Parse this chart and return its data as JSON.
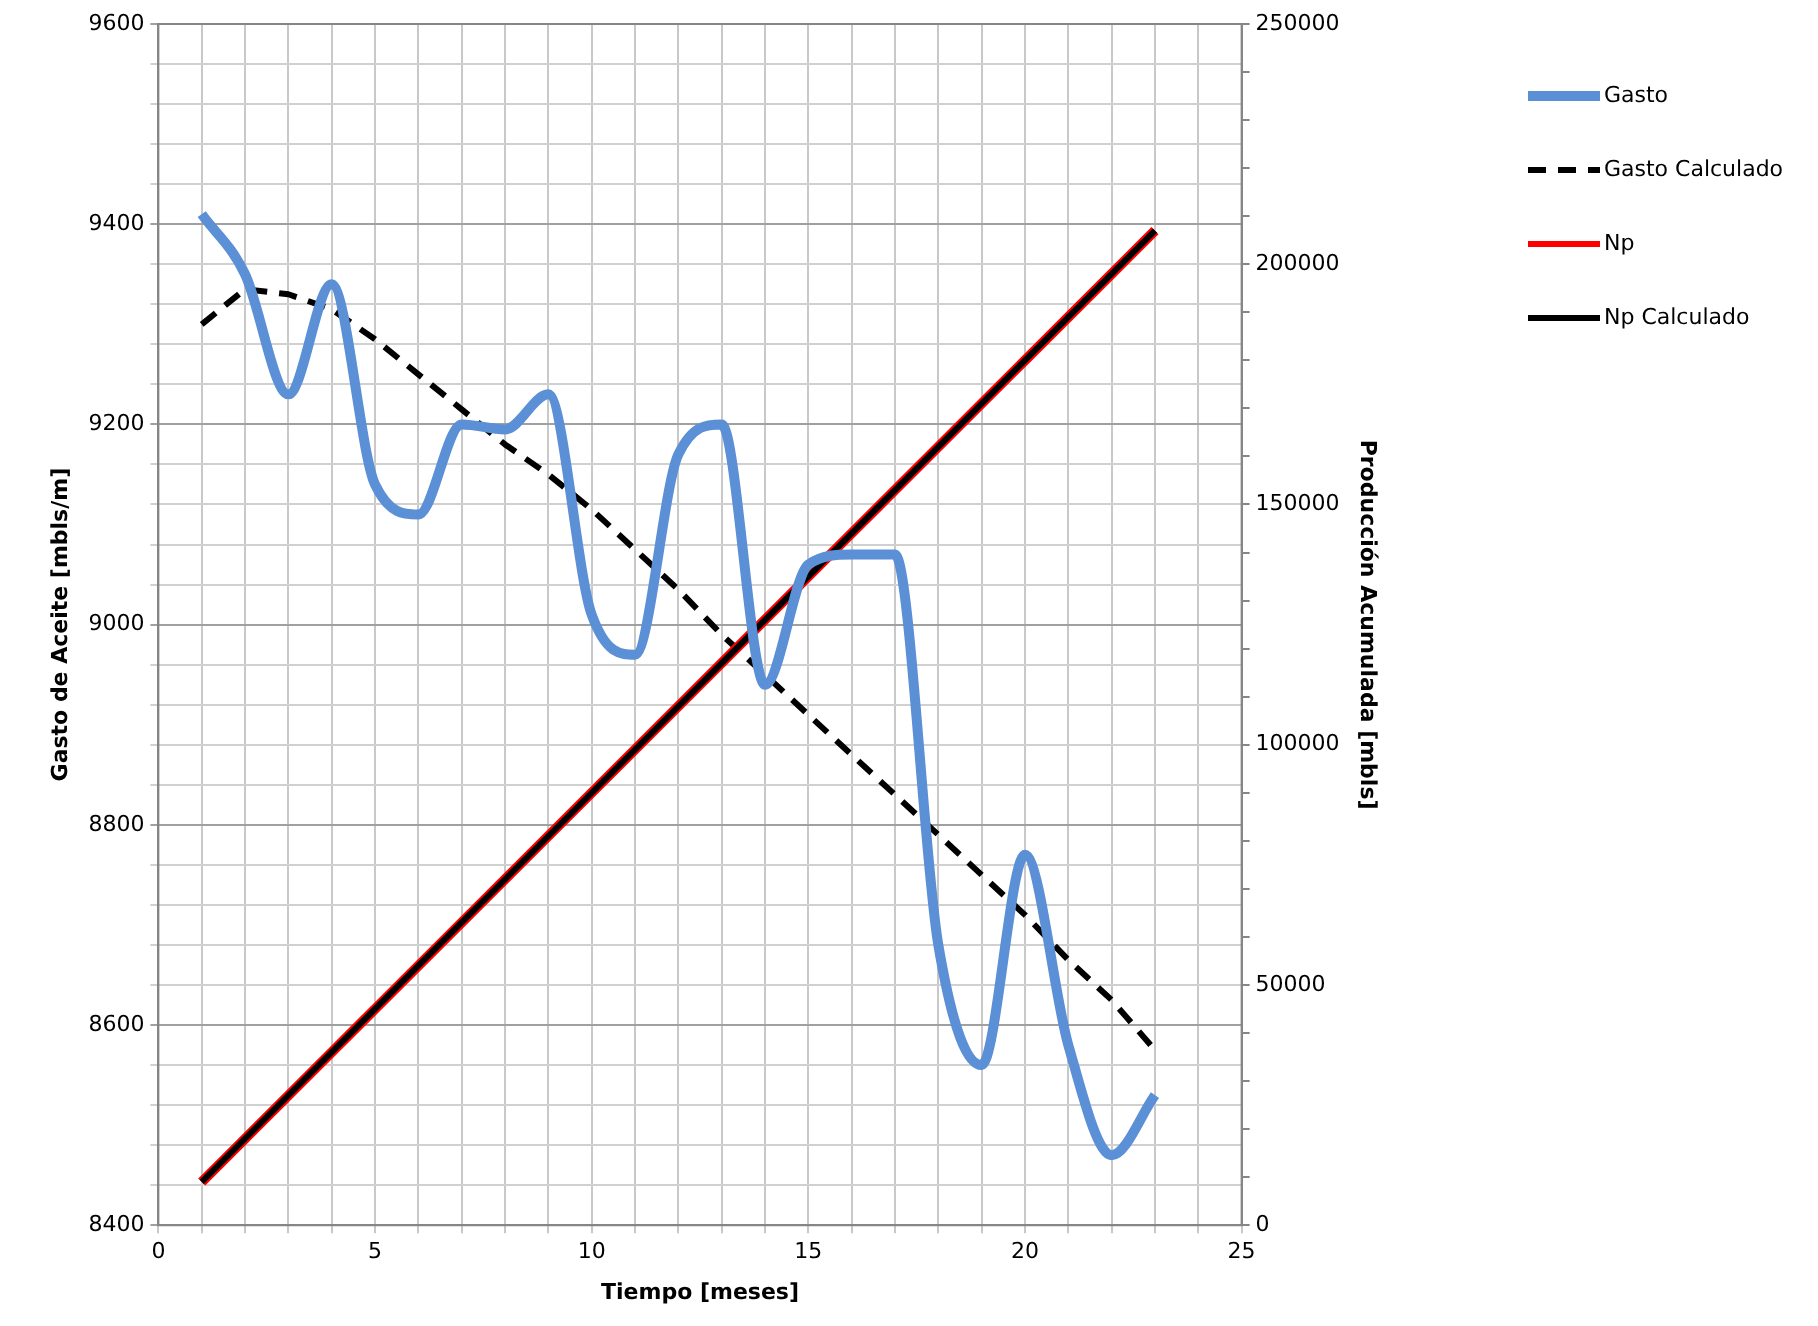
{
  "chart_data": {
    "type": "line",
    "xlabel": "Tiempo [meses]",
    "ylabel": "Gasto de Aceite [mbls/m]",
    "y2label": "Producción Acumulada [mbls]",
    "x": [
      1,
      2,
      3,
      4,
      5,
      6,
      7,
      8,
      9,
      10,
      11,
      12,
      13,
      14,
      15,
      16,
      17,
      18,
      19,
      20,
      21,
      22,
      23
    ],
    "series": [
      {
        "name": "Gasto",
        "color": "#5b8fd6",
        "values": [
          9410,
          9350,
          9230,
          9340,
          9140,
          9110,
          9200,
          9195,
          9230,
          9010,
          8970,
          9170,
          9200,
          8940,
          9060,
          9070,
          9070,
          8680,
          8560,
          8770,
          8580,
          8470,
          8530
        ]
      },
      {
        "name": "Gasto Calculado",
        "color": "#000000",
        "line_style": "dashed",
        "values": [
          9300,
          9335,
          9330,
          9315,
          9285,
          9250,
          9215,
          9180,
          9150,
          9115,
          9075,
          9035,
          8990,
          8950,
          8910,
          8870,
          8830,
          8790,
          8750,
          8710,
          8665,
          8625,
          8575
        ]
      },
      {
        "name": "Np",
        "color": "#ff0000",
        "axis": "y2",
        "values": [
          9000,
          18000,
          27000,
          36000,
          45000,
          54000,
          63000,
          72000,
          81000,
          90000,
          99000,
          108000,
          117000,
          126000,
          135000,
          144000,
          153000,
          162000,
          171000,
          180000,
          189000,
          198000,
          207000
        ]
      },
      {
        "name": "Np Calculado",
        "color": "#000000",
        "axis": "y2",
        "values": [
          9000,
          18000,
          27000,
          36000,
          45000,
          54000,
          63000,
          72000,
          81000,
          90000,
          99000,
          108000,
          117000,
          126000,
          135000,
          144000,
          153000,
          162000,
          171000,
          180000,
          189000,
          198000,
          207000
        ]
      }
    ],
    "xlim": [
      0,
      25
    ],
    "xticks": [
      0,
      {
        "value": 1,
        "label": null
      },
      {
        "value": 2,
        "label": null
      },
      {
        "value": 3,
        "label": null
      },
      {
        "value": 4,
        "label": null
      },
      5,
      {
        "value": 6,
        "label": null
      },
      {
        "value": 7,
        "label": null
      },
      {
        "value": 8,
        "label": null
      },
      {
        "value": 9,
        "label": null
      },
      10,
      {
        "value": 11,
        "label": null
      },
      {
        "value": 12,
        "label": null
      },
      {
        "value": 13,
        "label": null
      },
      {
        "value": 14,
        "label": null
      },
      15,
      {
        "value": 16,
        "label": null
      },
      {
        "value": 17,
        "label": null
      },
      {
        "value": 18,
        "label": null
      },
      {
        "value": 19,
        "label": null
      },
      20,
      {
        "value": 21,
        "label": null
      },
      {
        "value": 22,
        "label": null
      },
      {
        "value": 23,
        "label": null
      },
      {
        "value": 24,
        "label": null
      },
      25
    ],
    "ylim": [
      8400,
      9600
    ],
    "yticks": [
      8400,
      {
        "value": 8440,
        "label": null
      },
      {
        "value": 8480,
        "label": null
      },
      {
        "value": 8520,
        "label": null
      },
      {
        "value": 8560,
        "label": null
      },
      8600,
      {
        "value": 8640,
        "label": null
      },
      {
        "value": 8680,
        "label": null
      },
      {
        "value": 8720,
        "label": null
      },
      {
        "value": 8760,
        "label": null
      },
      8800,
      {
        "value": 8840,
        "label": null
      },
      {
        "value": 8880,
        "label": null
      },
      {
        "value": 8920,
        "label": null
      },
      {
        "value": 8960,
        "label": null
      },
      9000,
      {
        "value": 9040,
        "label": null
      },
      {
        "value": 9080,
        "label": null
      },
      {
        "value": 9120,
        "label": null
      },
      {
        "value": 9160,
        "label": null
      },
      9200,
      {
        "value": 9240,
        "label": null
      },
      {
        "value": 9280,
        "label": null
      },
      {
        "value": 9320,
        "label": null
      },
      {
        "value": 9360,
        "label": null
      },
      9400,
      {
        "value": 9440,
        "label": null
      },
      {
        "value": 9480,
        "label": null
      },
      {
        "value": 9520,
        "label": null
      },
      {
        "value": 9560,
        "label": null
      },
      9600
    ],
    "y2lim": [
      0,
      250000
    ],
    "y2ticks": [
      0,
      {
        "value": 10000,
        "label": null
      },
      {
        "value": 20000,
        "label": null
      },
      {
        "value": 30000,
        "label": null
      },
      {
        "value": 40000,
        "label": null
      },
      50000,
      {
        "value": 60000,
        "label": null
      },
      {
        "value": 70000,
        "label": null
      },
      {
        "value": 80000,
        "label": null
      },
      {
        "value": 90000,
        "label": null
      },
      100000,
      {
        "value": 110000,
        "label": null
      },
      {
        "value": 120000,
        "label": null
      },
      {
        "value": 130000,
        "label": null
      },
      {
        "value": 140000,
        "label": null
      },
      150000,
      {
        "value": 160000,
        "label": null
      },
      {
        "value": 170000,
        "label": null
      },
      {
        "value": 180000,
        "label": null
      },
      {
        "value": 190000,
        "label": null
      },
      200000,
      {
        "value": 210000,
        "label": null
      },
      {
        "value": 220000,
        "label": null
      },
      {
        "value": 230000,
        "label": null
      },
      {
        "value": 240000,
        "label": null
      },
      250000
    ],
    "grid": true,
    "legend": "right",
    "marker": "none"
  }
}
